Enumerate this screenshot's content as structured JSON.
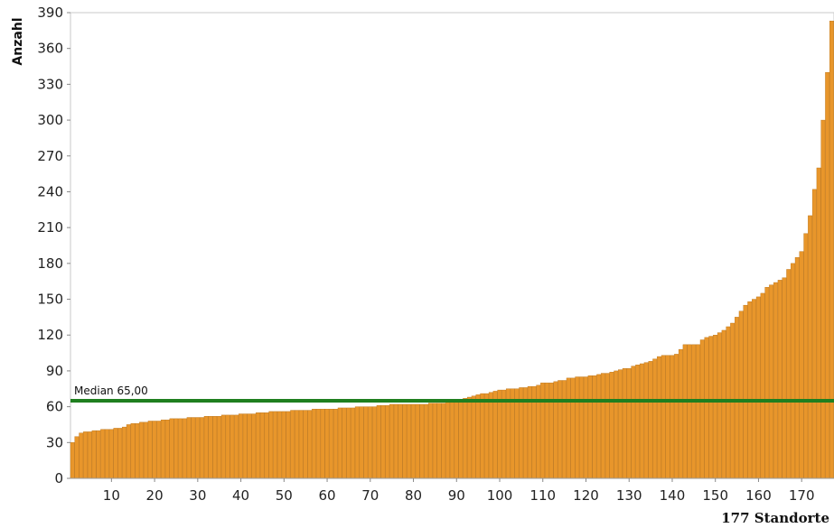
{
  "chart_data": {
    "type": "bar",
    "ylabel": "Anzahl",
    "xlabel": "177 Standorte",
    "ylim": [
      0,
      390
    ],
    "yticks": [
      0,
      30,
      60,
      90,
      120,
      150,
      180,
      210,
      240,
      270,
      300,
      330,
      360,
      390
    ],
    "xticks": [
      10,
      20,
      30,
      40,
      50,
      60,
      70,
      80,
      90,
      100,
      110,
      120,
      130,
      140,
      150,
      160,
      170
    ],
    "n_bars": 177,
    "median": {
      "value": 65,
      "label": "Median 65,00"
    },
    "colors": {
      "bar": "#e8962b",
      "bar_edge": "#b86f12",
      "median_line": "#1f7f1f"
    },
    "series": [
      {
        "values": [
          30,
          35,
          38,
          39,
          39,
          40,
          40,
          41,
          41,
          41,
          42,
          42,
          43,
          45,
          46,
          46,
          47,
          47,
          48,
          48,
          48,
          49,
          49,
          50,
          50,
          50,
          50,
          51,
          51,
          51,
          51,
          52,
          52,
          52,
          52,
          53,
          53,
          53,
          53,
          54,
          54,
          54,
          54,
          55,
          55,
          55,
          56,
          56,
          56,
          56,
          56,
          57,
          57,
          57,
          57,
          57,
          58,
          58,
          58,
          58,
          58,
          58,
          59,
          59,
          59,
          59,
          60,
          60,
          60,
          60,
          60,
          61,
          61,
          61,
          62,
          62,
          62,
          62,
          62,
          62,
          62,
          62,
          62,
          63,
          63,
          63,
          63,
          64,
          65,
          65,
          66,
          67,
          68,
          69,
          70,
          71,
          71,
          72,
          73,
          74,
          74,
          75,
          75,
          75,
          76,
          76,
          77,
          77,
          78,
          80,
          80,
          80,
          81,
          82,
          82,
          84,
          84,
          85,
          85,
          85,
          86,
          86,
          87,
          88,
          88,
          89,
          90,
          91,
          92,
          92,
          94,
          95,
          96,
          97,
          98,
          100,
          102,
          103,
          103,
          103,
          104,
          108,
          112,
          112,
          112,
          112,
          116,
          118,
          119,
          120,
          122,
          124,
          127,
          130,
          135,
          140,
          145,
          148,
          150,
          152,
          155,
          160,
          162,
          164,
          166,
          168,
          175,
          180,
          185,
          190,
          205,
          220,
          242,
          260,
          300,
          340,
          383
        ]
      }
    ]
  }
}
